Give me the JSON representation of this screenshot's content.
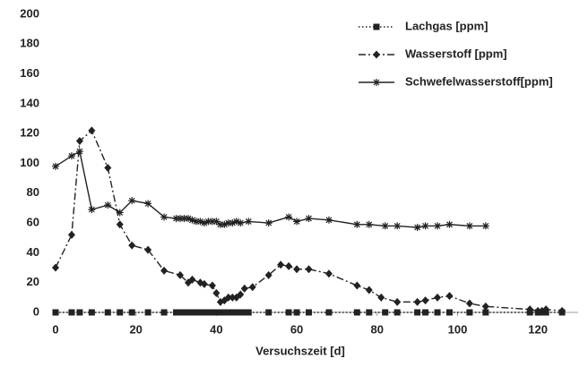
{
  "chart_data": {
    "type": "line",
    "x_label": "Versuchszeit [d]",
    "xlim": [
      0,
      130
    ],
    "xticks": [
      0,
      20,
      40,
      60,
      80,
      100,
      120
    ],
    "ylim": [
      0,
      200
    ],
    "yticks": [
      0,
      20,
      40,
      60,
      80,
      100,
      120,
      140,
      160,
      180,
      200
    ],
    "grid": false,
    "legend": "top-right",
    "series": [
      {
        "name": "Lachgas [ppm]",
        "color": "#222222",
        "linestyle": "dotted",
        "marker": "square",
        "x": [
          0,
          4,
          6,
          9,
          13,
          16,
          19,
          23,
          27,
          30,
          31,
          32,
          33,
          34,
          35,
          36,
          37,
          38,
          39,
          40,
          41,
          42,
          43,
          44,
          45,
          46,
          47,
          48,
          53,
          58,
          60,
          63,
          68,
          75,
          78,
          82,
          85,
          90,
          92,
          95,
          98,
          103,
          107,
          118,
          120,
          121,
          122,
          126
        ],
        "values": [
          0,
          0,
          0,
          0,
          0,
          0,
          0,
          0,
          0,
          0,
          0,
          0,
          0,
          0,
          0,
          0,
          0,
          0,
          0,
          0,
          0,
          0,
          0,
          0,
          0,
          0,
          0,
          0,
          0,
          0,
          0,
          0,
          0,
          0,
          0,
          0,
          0,
          0,
          0,
          0,
          0,
          0,
          0,
          0,
          0,
          0,
          0,
          0
        ]
      },
      {
        "name": "Wasserstoff [ppm]",
        "color": "#222222",
        "linestyle": "dashdot",
        "marker": "diamond",
        "x": [
          0,
          4,
          6,
          9,
          13,
          16,
          19,
          23,
          27,
          31,
          33,
          34,
          36,
          37,
          39,
          40,
          41,
          42,
          43,
          44,
          45,
          46,
          47,
          49,
          53,
          56,
          58,
          60,
          63,
          68,
          75,
          78,
          81,
          85,
          90,
          92,
          95,
          98,
          103,
          107,
          118,
          120,
          121,
          122,
          126
        ],
        "values": [
          30,
          52,
          115,
          122,
          97,
          59,
          45,
          42,
          28,
          25,
          20,
          22,
          20,
          19,
          18,
          13,
          7,
          8,
          10,
          10,
          10,
          12,
          16,
          17,
          25,
          32,
          31,
          29,
          29,
          26,
          18,
          15,
          10,
          7,
          7,
          8,
          10,
          11,
          6,
          4,
          2,
          1,
          1,
          2,
          1
        ]
      },
      {
        "name": "Schwefelwasserstoff[ppm]",
        "color": "#222222",
        "linestyle": "solid",
        "marker": "star",
        "x": [
          0,
          4,
          6,
          9,
          13,
          16,
          19,
          23,
          27,
          30,
          31,
          32,
          33,
          34,
          35,
          36,
          37,
          38,
          39,
          40,
          41,
          42,
          43,
          44,
          45,
          46,
          48,
          53,
          58,
          60,
          63,
          68,
          75,
          78,
          82,
          85,
          90,
          92,
          95,
          98,
          103,
          107
        ],
        "values": [
          98,
          105,
          108,
          69,
          72,
          67,
          75,
          73,
          64,
          63,
          63,
          63,
          63,
          62,
          61,
          61,
          60,
          61,
          61,
          61,
          59,
          59,
          60,
          60,
          61,
          60,
          61,
          60,
          64,
          61,
          63,
          62,
          59,
          59,
          58,
          58,
          57,
          58,
          58,
          59,
          58,
          58
        ]
      }
    ]
  }
}
